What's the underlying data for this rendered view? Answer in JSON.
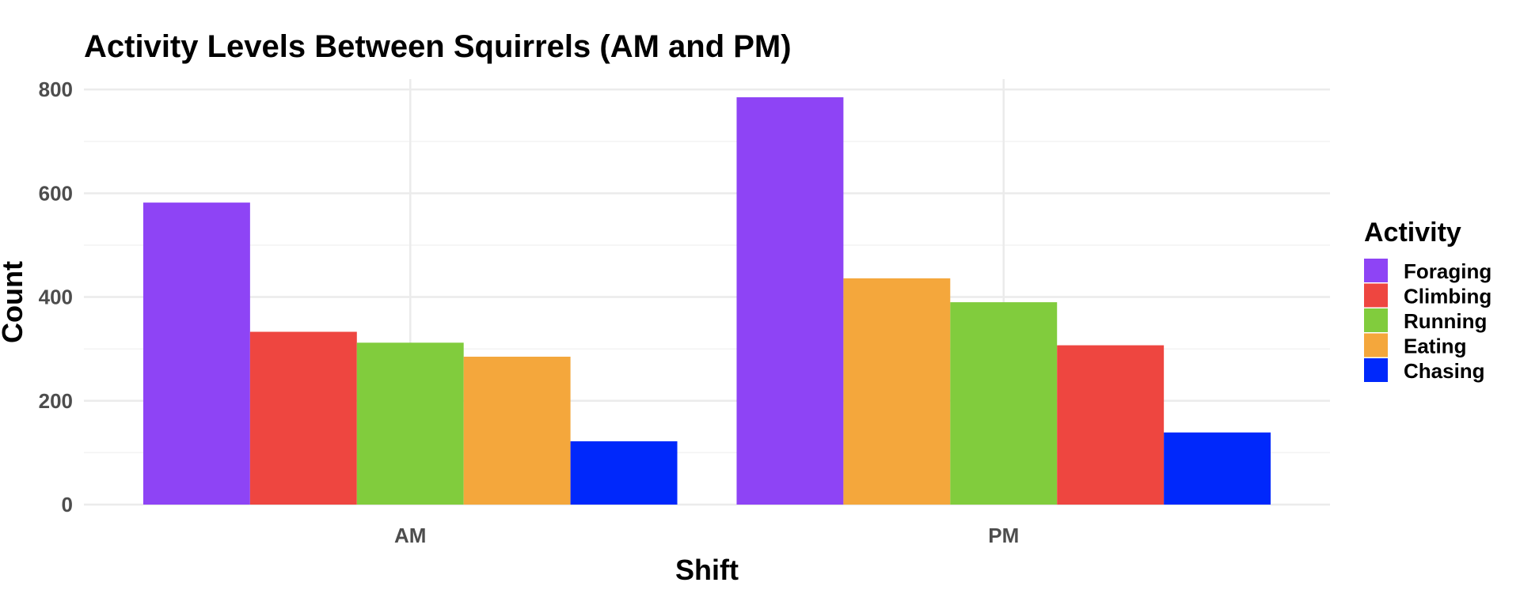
{
  "chart_data": {
    "type": "bar",
    "title": "Activity Levels Between Squirrels (AM and PM)",
    "xlabel": "Shift",
    "ylabel": "Count",
    "categories": [
      "AM",
      "PM"
    ],
    "ylim": [
      0,
      820
    ],
    "yticks": [
      0,
      200,
      400,
      600,
      800
    ],
    "grid": true,
    "legend": {
      "title": "Activity",
      "position": "right"
    },
    "series": [
      {
        "name": "Foraging",
        "color": "#8E44F5"
      },
      {
        "name": "Climbing",
        "color": "#EE4640"
      },
      {
        "name": "Running",
        "color": "#81CC3D"
      },
      {
        "name": "Eating",
        "color": "#F4A73C"
      },
      {
        "name": "Chasing",
        "color": "#0028FB"
      }
    ],
    "groups": [
      {
        "category": "AM",
        "bars": [
          {
            "series": "Foraging",
            "value": 582
          },
          {
            "series": "Climbing",
            "value": 333
          },
          {
            "series": "Running",
            "value": 312
          },
          {
            "series": "Eating",
            "value": 285
          },
          {
            "series": "Chasing",
            "value": 122
          }
        ]
      },
      {
        "category": "PM",
        "bars": [
          {
            "series": "Foraging",
            "value": 785
          },
          {
            "series": "Eating",
            "value": 436
          },
          {
            "series": "Running",
            "value": 390
          },
          {
            "series": "Climbing",
            "value": 307
          },
          {
            "series": "Chasing",
            "value": 139
          }
        ]
      }
    ]
  }
}
